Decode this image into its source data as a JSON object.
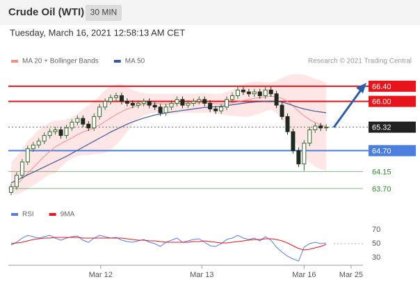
{
  "header": {
    "title": "Crude Oil (WTI)",
    "interval": "30 MIN",
    "date": "Tuesday, March 16, 2021 12:58:13 AM CET"
  },
  "chart_data": [
    {
      "type": "candlestick",
      "source": "Research © 2021 Trading Central",
      "ylim": [
        63.44,
        66.93
      ],
      "xlim": [
        -0.5,
        63.65
      ],
      "yticks": [
        {
          "value": 66.4,
          "label": "66.40"
        },
        {
          "value": 66.0,
          "label": "66.00"
        },
        {
          "value": 65.32,
          "label": "65.32"
        },
        {
          "value": 64.7,
          "label": "64.70"
        },
        {
          "value": 64.15,
          "label": "64.15"
        },
        {
          "value": 63.7,
          "label": "63.70"
        }
      ],
      "ytick_colors": [
        "#e8141b",
        "#e8141b",
        "#222222",
        "#4a7fe0",
        "#2a8a2a",
        "#2a8a2a"
      ],
      "ytick_boxed": [
        true,
        true,
        true,
        true,
        false,
        false
      ],
      "up_color": "#2f6b2f",
      "down_color": "#1f2a1f",
      "band_color": "#ffd6d6",
      "open": [
        63.6,
        63.75,
        64.05,
        64.4,
        64.75,
        64.85,
        64.95,
        65.1,
        65.2,
        65.25,
        65.1,
        65.3,
        65.45,
        65.55,
        65.4,
        65.3,
        65.6,
        65.85,
        66.0,
        66.1,
        66.15,
        66.0,
        65.95,
        65.9,
        65.95,
        66.0,
        65.9,
        65.85,
        65.7,
        65.85,
        65.95,
        66.05,
        65.9,
        65.95,
        66.0,
        66.05,
        65.95,
        65.8,
        65.75,
        65.85,
        66.05,
        66.15,
        66.3,
        66.25,
        66.2,
        66.25,
        66.15,
        66.3,
        66.2,
        65.9,
        65.6,
        65.2,
        64.7,
        64.35,
        64.9,
        65.25,
        65.35,
        65.3
      ],
      "close": [
        63.75,
        64.05,
        64.4,
        64.75,
        64.85,
        64.95,
        65.1,
        65.2,
        65.25,
        65.1,
        65.3,
        65.45,
        65.55,
        65.4,
        65.3,
        65.6,
        65.85,
        66.0,
        66.1,
        66.15,
        66.0,
        65.95,
        65.9,
        65.95,
        66.0,
        65.9,
        65.85,
        65.7,
        65.85,
        65.95,
        66.05,
        65.9,
        65.95,
        66.0,
        66.05,
        65.95,
        65.8,
        65.75,
        65.85,
        66.05,
        66.15,
        66.3,
        66.25,
        66.2,
        66.25,
        66.15,
        66.3,
        66.2,
        65.9,
        65.6,
        65.2,
        64.7,
        64.35,
        64.9,
        65.25,
        65.35,
        65.3,
        65.32
      ],
      "high": [
        63.83,
        64.13,
        64.48,
        64.83,
        64.93,
        65.03,
        65.18,
        65.28,
        65.33,
        65.33,
        65.38,
        65.53,
        65.63,
        65.63,
        65.48,
        65.68,
        65.93,
        66.08,
        66.18,
        66.23,
        66.23,
        66.08,
        66.03,
        66.03,
        66.08,
        66.08,
        65.98,
        65.93,
        65.93,
        66.03,
        66.13,
        66.13,
        66.03,
        66.08,
        66.13,
        66.13,
        66.03,
        65.88,
        65.93,
        66.13,
        66.23,
        66.38,
        66.38,
        66.33,
        66.33,
        66.33,
        66.38,
        66.38,
        66.28,
        65.98,
        65.68,
        65.28,
        64.78,
        64.98,
        65.33,
        65.43,
        65.43,
        65.4
      ],
      "low": [
        63.52,
        63.67,
        63.97,
        64.32,
        64.67,
        64.77,
        64.87,
        65.02,
        65.12,
        65.02,
        65.02,
        65.22,
        65.37,
        65.32,
        65.22,
        65.22,
        65.52,
        65.77,
        65.92,
        66.02,
        65.92,
        65.87,
        65.82,
        65.82,
        65.87,
        65.82,
        65.77,
        65.62,
        65.62,
        65.77,
        65.87,
        65.82,
        65.82,
        65.87,
        65.92,
        65.87,
        65.72,
        65.67,
        65.67,
        65.77,
        65.97,
        66.07,
        66.17,
        66.12,
        66.12,
        66.07,
        66.07,
        66.12,
        65.82,
        65.52,
        65.12,
        64.62,
        64.27,
        64.17,
        64.82,
        65.17,
        65.22,
        65.22
      ],
      "series": [
        {
          "name": "MA 20 + Bollinger Bands",
          "color": "#f28b8b",
          "values": [
            63.7,
            63.8,
            63.95,
            64.1,
            64.25,
            64.4,
            64.55,
            64.68,
            64.8,
            64.88,
            64.96,
            65.04,
            65.12,
            65.19,
            65.24,
            65.3,
            65.38,
            65.47,
            65.56,
            65.65,
            65.73,
            65.8,
            65.85,
            65.89,
            65.92,
            65.94,
            65.95,
            65.94,
            65.93,
            65.93,
            65.94,
            65.95,
            65.95,
            65.95,
            65.96,
            65.96,
            65.95,
            65.94,
            65.93,
            65.94,
            65.96,
            65.99,
            66.02,
            66.05,
            66.08,
            66.1,
            66.12,
            66.14,
            66.12,
            66.08,
            66.0,
            65.88,
            65.74,
            65.62,
            65.52,
            65.44,
            65.38,
            65.34
          ],
          "upper": [
            64.4,
            64.55,
            64.75,
            64.95,
            65.1,
            65.25,
            65.35,
            65.45,
            65.5,
            65.5,
            65.52,
            65.58,
            65.68,
            65.8,
            65.9,
            66.0,
            66.15,
            66.3,
            66.4,
            66.45,
            66.45,
            66.4,
            66.3,
            66.25,
            66.22,
            66.2,
            66.2,
            66.2,
            66.2,
            66.2,
            66.2,
            66.2,
            66.2,
            66.2,
            66.22,
            66.22,
            66.2,
            66.2,
            66.2,
            66.25,
            66.3,
            66.38,
            66.45,
            66.5,
            66.52,
            66.52,
            66.5,
            66.5,
            66.55,
            66.62,
            66.68,
            66.72,
            66.72,
            66.7,
            66.65,
            66.6,
            66.55,
            66.5
          ],
          "lower": [
            63.55,
            63.55,
            63.6,
            63.68,
            63.78,
            63.88,
            63.98,
            64.08,
            64.1,
            64.26,
            64.4,
            64.5,
            64.56,
            64.58,
            64.58,
            64.6,
            64.61,
            64.64,
            64.72,
            64.85,
            65.01,
            65.2,
            65.4,
            65.53,
            65.62,
            65.68,
            65.7,
            65.68,
            65.66,
            65.66,
            65.68,
            65.7,
            65.7,
            65.7,
            65.7,
            65.7,
            65.7,
            65.68,
            65.66,
            65.63,
            65.62,
            65.6,
            65.59,
            65.6,
            65.64,
            65.68,
            65.74,
            65.78,
            65.69,
            65.54,
            65.32,
            65.04,
            64.76,
            64.54,
            64.39,
            64.28,
            64.21,
            64.18
          ]
        },
        {
          "name": "MA 50",
          "color": "#3b5a9a",
          "values": [
            63.85,
            63.92,
            63.99,
            64.06,
            64.13,
            64.2,
            64.27,
            64.34,
            64.41,
            64.48,
            64.55,
            64.63,
            64.71,
            64.79,
            64.87,
            64.95,
            65.03,
            65.11,
            65.19,
            65.26,
            65.33,
            65.4,
            65.46,
            65.51,
            65.56,
            65.6,
            65.64,
            65.67,
            65.7,
            65.72,
            65.74,
            65.76,
            65.78,
            65.8,
            65.82,
            65.84,
            65.85,
            65.86,
            65.87,
            65.89,
            65.91,
            65.93,
            65.95,
            65.97,
            65.98,
            65.99,
            66.0,
            66.01,
            66.0,
            65.98,
            65.94,
            65.89,
            65.84,
            65.8,
            65.77,
            65.74,
            65.72,
            65.7
          ]
        }
      ]
    },
    {
      "type": "line",
      "ylim": [
        22,
        82
      ],
      "xlim": [
        -0.5,
        63.65
      ],
      "yticks": [
        70,
        50,
        30
      ],
      "xticks": [
        {
          "value": 16.2,
          "label": "Mar 12"
        },
        {
          "value": 34.5,
          "label": "Mar 13"
        },
        {
          "value": 53,
          "label": "Mar 16"
        },
        {
          "value": 61.5,
          "label": "Mar 25"
        }
      ],
      "series": [
        {
          "name": "RSI",
          "color": "#5b7be0",
          "values": [
            48,
            52,
            58,
            62,
            60,
            58,
            60,
            62,
            58,
            55,
            58,
            60,
            61,
            55,
            52,
            58,
            62,
            60,
            58,
            59,
            55,
            53,
            52,
            54,
            56,
            52,
            50,
            46,
            52,
            55,
            58,
            52,
            54,
            56,
            57,
            52,
            47,
            46,
            50,
            56,
            58,
            62,
            58,
            56,
            58,
            54,
            60,
            55,
            45,
            38,
            32,
            28,
            25,
            45,
            50,
            52,
            50,
            51
          ]
        },
        {
          "name": "9MA",
          "color": "#e8141b",
          "values": [
            50,
            51,
            52,
            54,
            56,
            57,
            58,
            58,
            59,
            59,
            59,
            59,
            59,
            58,
            58,
            58,
            58,
            58,
            58,
            58,
            58,
            57,
            56,
            55,
            55,
            54,
            54,
            53,
            52,
            52,
            52,
            52,
            52,
            53,
            53,
            54,
            53,
            52,
            51,
            51,
            52,
            53,
            54,
            55,
            56,
            56,
            57,
            57,
            56,
            54,
            51,
            47,
            43,
            41,
            42,
            44,
            46,
            49
          ]
        }
      ]
    }
  ]
}
